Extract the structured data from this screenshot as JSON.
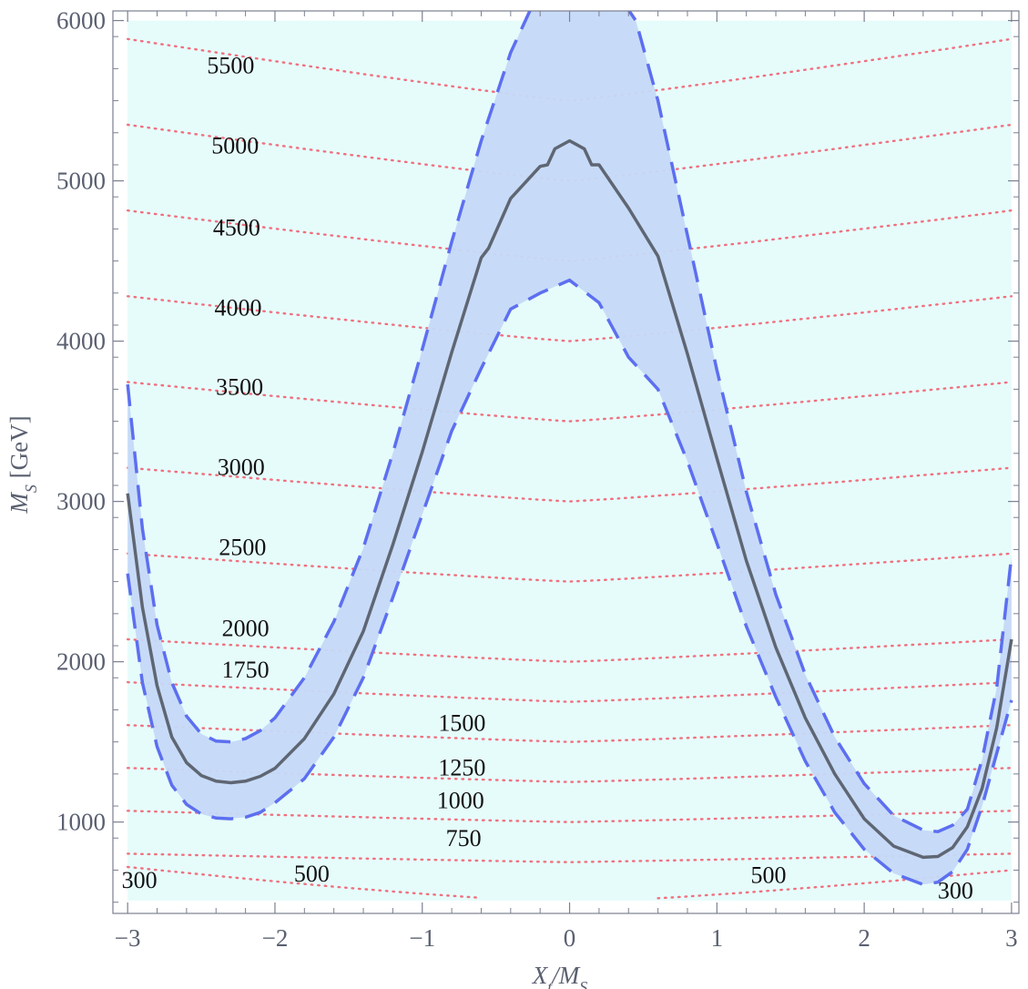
{
  "chart_data": {
    "type": "line",
    "title": "",
    "xlabel": "X_t/M_S",
    "ylabel": "M_S [GeV]",
    "xlim": [
      -3.1,
      3.05
    ],
    "ylim": [
      430,
      6060
    ],
    "x_ticks": [
      -3,
      -2,
      -1,
      0,
      1,
      2,
      3
    ],
    "x_tick_labels": [
      "−3",
      "−2",
      "−1",
      "0",
      "1",
      "2",
      "3"
    ],
    "y_ticks": [
      1000,
      2000,
      3000,
      4000,
      5000,
      6000
    ],
    "y_tick_labels": [
      "1000",
      "2000",
      "3000",
      "4000",
      "5000",
      "6000"
    ],
    "grid": false,
    "legend": "none",
    "colors": {
      "plot_background": "#e6fcfb",
      "band_fill": "#c5d9f8",
      "band_edge": "#5d6ff0",
      "central_line": "#5f6673",
      "contour": "#f0707e",
      "axis": "#7a8090"
    },
    "contour_levels": [
      {
        "level": 5500,
        "label": "5500",
        "label_x": -2.3,
        "label_y": 5670
      },
      {
        "level": 5000,
        "label": "5000",
        "label_x": -2.27,
        "label_y": 5170
      },
      {
        "level": 4500,
        "label": "4500",
        "label_x": -2.26,
        "label_y": 4660
      },
      {
        "level": 4000,
        "label": "4000",
        "label_x": -2.25,
        "label_y": 4160
      },
      {
        "level": 3500,
        "label": "3500",
        "label_x": -2.24,
        "label_y": 3665
      },
      {
        "level": 3000,
        "label": "3000",
        "label_x": -2.23,
        "label_y": 3165
      },
      {
        "level": 2500,
        "label": "2500",
        "label_x": -2.22,
        "label_y": 2665
      },
      {
        "level": 2000,
        "label": "2000",
        "label_x": -2.2,
        "label_y": 2160
      },
      {
        "level": 1750,
        "label": "1750",
        "label_x": -2.2,
        "label_y": 1900
      },
      {
        "level": 1500,
        "label": "1500",
        "label_x": -0.73,
        "label_y": 1570
      },
      {
        "level": 1250,
        "label": "1250",
        "label_x": -0.73,
        "label_y": 1290
      },
      {
        "level": 1000,
        "label": "1000",
        "label_x": -0.74,
        "label_y": 1085
      },
      {
        "level": 750,
        "label": "750",
        "label_x": -0.72,
        "label_y": 850
      },
      {
        "level": 500,
        "label": "500",
        "label_x": -1.75,
        "label_y": 630
      },
      {
        "level": 500,
        "label": "500",
        "label_x": 1.35,
        "label_y": 620
      },
      {
        "level": 300,
        "label": "300",
        "label_x": -2.92,
        "label_y": 590
      },
      {
        "level": 300,
        "label": "300",
        "label_x": 2.62,
        "label_y": 525
      }
    ],
    "series": [
      {
        "role": "central",
        "style": "solid",
        "x": [
          -3.0,
          -2.9,
          -2.8,
          -2.7,
          -2.6,
          -2.5,
          -2.4,
          -2.3,
          -2.2,
          -2.1,
          -2.0,
          -1.8,
          -1.6,
          -1.4,
          -1.2,
          -1.0,
          -0.8,
          -0.6,
          -0.55,
          -0.4,
          -0.2,
          -0.15,
          -0.1,
          0.0,
          0.1,
          0.15,
          0.2,
          0.4,
          0.6,
          0.8,
          1.0,
          1.2,
          1.4,
          1.6,
          1.8,
          2.0,
          2.2,
          2.4,
          2.5,
          2.6,
          2.7,
          2.8,
          2.9,
          3.0
        ],
        "y": [
          3050,
          2340,
          1850,
          1530,
          1370,
          1290,
          1255,
          1245,
          1255,
          1285,
          1335,
          1520,
          1800,
          2190,
          2730,
          3310,
          3930,
          4520,
          4580,
          4890,
          5090,
          5100,
          5200,
          5250,
          5200,
          5100,
          5100,
          4830,
          4530,
          3920,
          3270,
          2630,
          2090,
          1650,
          1300,
          1020,
          850,
          780,
          785,
          840,
          970,
          1210,
          1590,
          2140
        ]
      },
      {
        "role": "upper",
        "style": "dashed",
        "x": [
          -3.0,
          -2.9,
          -2.8,
          -2.7,
          -2.6,
          -2.5,
          -2.4,
          -2.3,
          -2.2,
          -2.1,
          -2.0,
          -1.8,
          -1.6,
          -1.4,
          -1.2,
          -1.0,
          -0.8,
          -0.6,
          -0.4,
          -0.3,
          -0.2,
          0.3,
          0.45,
          0.6,
          0.8,
          1.0,
          1.2,
          1.4,
          1.6,
          1.8,
          2.0,
          2.2,
          2.4,
          2.5,
          2.6,
          2.7,
          2.8,
          2.9,
          3.0
        ],
        "y": [
          3730,
          2830,
          2230,
          1870,
          1660,
          1550,
          1505,
          1500,
          1520,
          1570,
          1650,
          1900,
          2250,
          2710,
          3300,
          3950,
          4620,
          5250,
          5800,
          6000,
          6200,
          6200,
          6000,
          5500,
          4660,
          3820,
          3060,
          2420,
          1920,
          1530,
          1240,
          1040,
          950,
          940,
          980,
          1080,
          1390,
          1840,
          2660
        ]
      },
      {
        "role": "lower",
        "style": "dashed",
        "x": [
          -3.0,
          -2.9,
          -2.8,
          -2.7,
          -2.6,
          -2.5,
          -2.4,
          -2.3,
          -2.2,
          -2.1,
          -2.0,
          -1.8,
          -1.6,
          -1.4,
          -1.2,
          -1.0,
          -0.8,
          -0.6,
          -0.4,
          -0.2,
          0.0,
          0.2,
          0.4,
          0.6,
          0.8,
          1.0,
          1.2,
          1.4,
          1.6,
          1.8,
          2.0,
          2.2,
          2.4,
          2.5,
          2.6,
          2.7,
          2.8,
          2.9,
          3.0
        ],
        "y": [
          2550,
          1870,
          1470,
          1230,
          1110,
          1050,
          1025,
          1020,
          1030,
          1060,
          1120,
          1270,
          1530,
          1900,
          2400,
          2920,
          3440,
          3830,
          4200,
          4300,
          4380,
          4240,
          3900,
          3700,
          3250,
          2740,
          2220,
          1780,
          1380,
          1060,
          830,
          680,
          610,
          625,
          690,
          830,
          1100,
          1430,
          1760
        ]
      }
    ]
  }
}
